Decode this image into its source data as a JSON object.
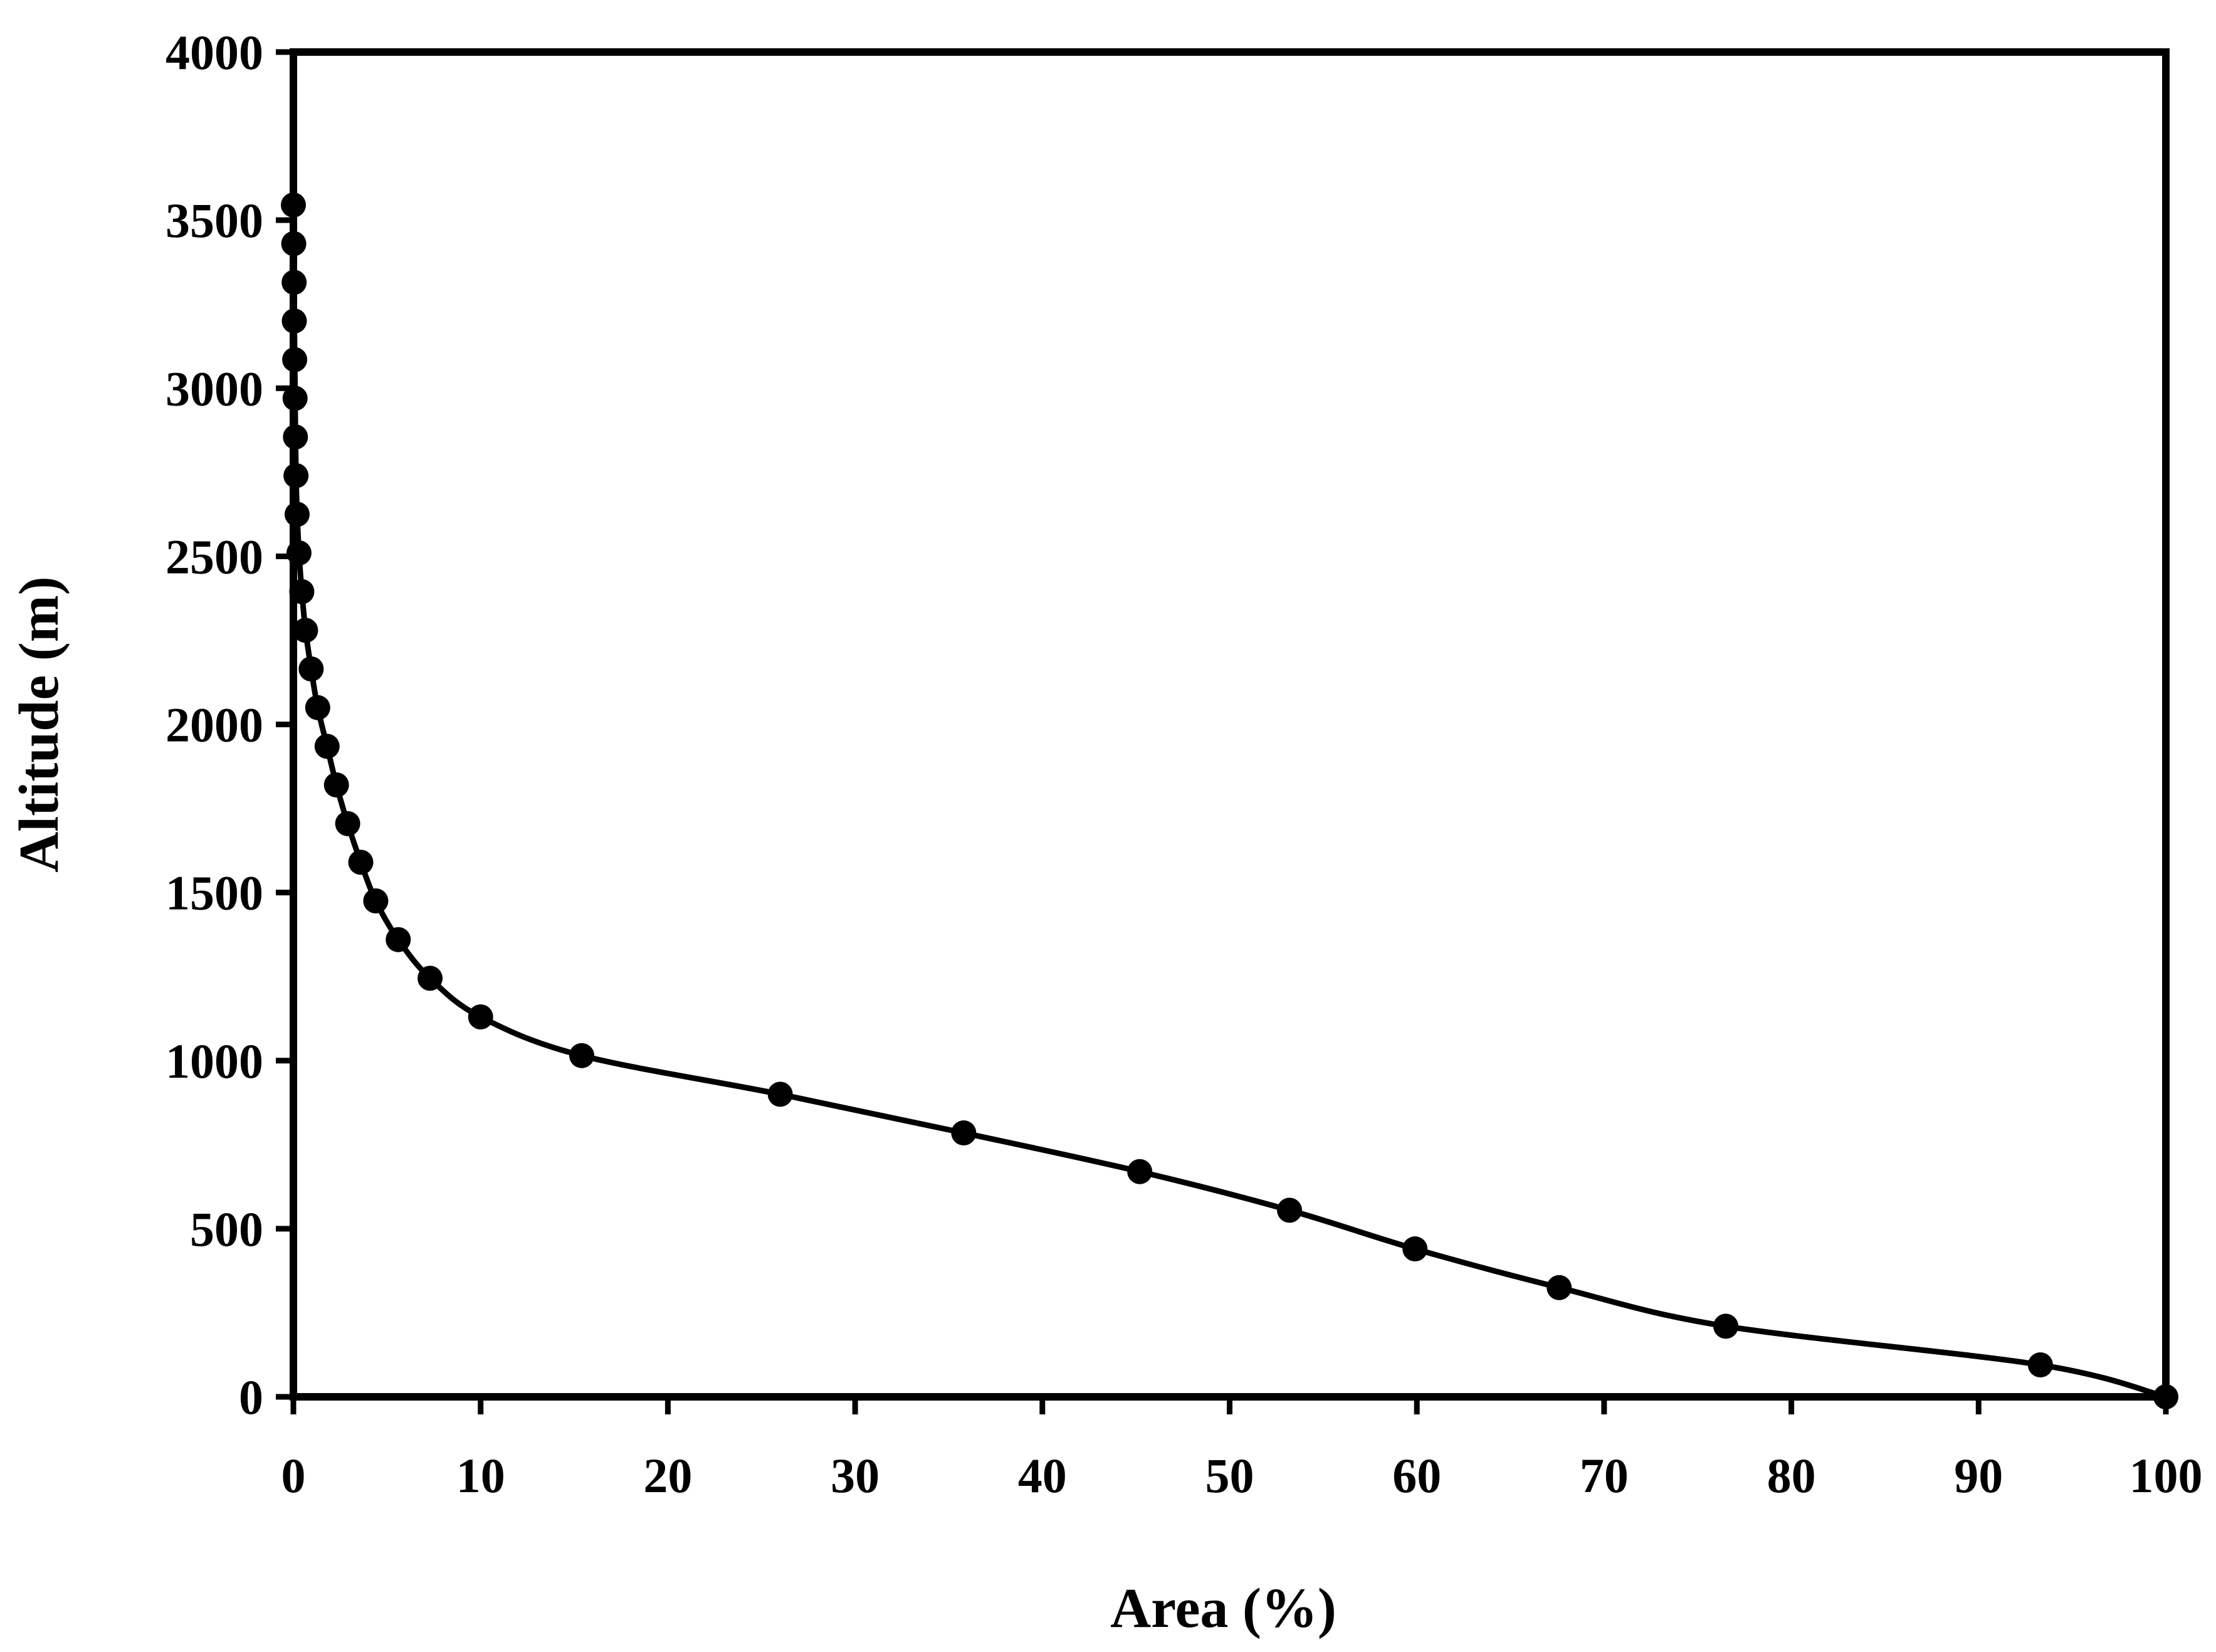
{
  "chart_data": {
    "type": "line",
    "title": "",
    "xlabel": "Area (%)",
    "ylabel": "Altitude (m)",
    "xlim": [
      0,
      100
    ],
    "ylim": [
      0,
      4000
    ],
    "x_ticks": [
      0,
      10,
      20,
      30,
      40,
      50,
      60,
      70,
      80,
      90,
      100
    ],
    "y_ticks": [
      0,
      500,
      1000,
      1500,
      2000,
      2500,
      3000,
      3500,
      4000
    ],
    "grid": false,
    "legend": "none",
    "marker": "circle",
    "line_color": "#000000",
    "series": [
      {
        "points": [
          [
            0.0,
            3545
          ],
          [
            0.02,
            3430
          ],
          [
            0.04,
            3315
          ],
          [
            0.05,
            3200
          ],
          [
            0.07,
            3085
          ],
          [
            0.09,
            2970
          ],
          [
            0.11,
            2855
          ],
          [
            0.14,
            2740
          ],
          [
            0.2,
            2625
          ],
          [
            0.3,
            2510
          ],
          [
            0.45,
            2395
          ],
          [
            0.65,
            2280
          ],
          [
            0.95,
            2165
          ],
          [
            1.3,
            2050
          ],
          [
            1.8,
            1935
          ],
          [
            2.3,
            1820
          ],
          [
            2.9,
            1705
          ],
          [
            3.6,
            1590
          ],
          [
            4.4,
            1475
          ],
          [
            5.6,
            1360
          ],
          [
            7.3,
            1245
          ],
          [
            10.0,
            1130
          ],
          [
            15.4,
            1015
          ],
          [
            26.0,
            900
          ],
          [
            35.8,
            785
          ],
          [
            45.2,
            670
          ],
          [
            53.2,
            555
          ],
          [
            59.9,
            440
          ],
          [
            67.6,
            325
          ],
          [
            76.5,
            210
          ],
          [
            93.3,
            95
          ],
          [
            100.0,
            0
          ]
        ]
      }
    ]
  }
}
